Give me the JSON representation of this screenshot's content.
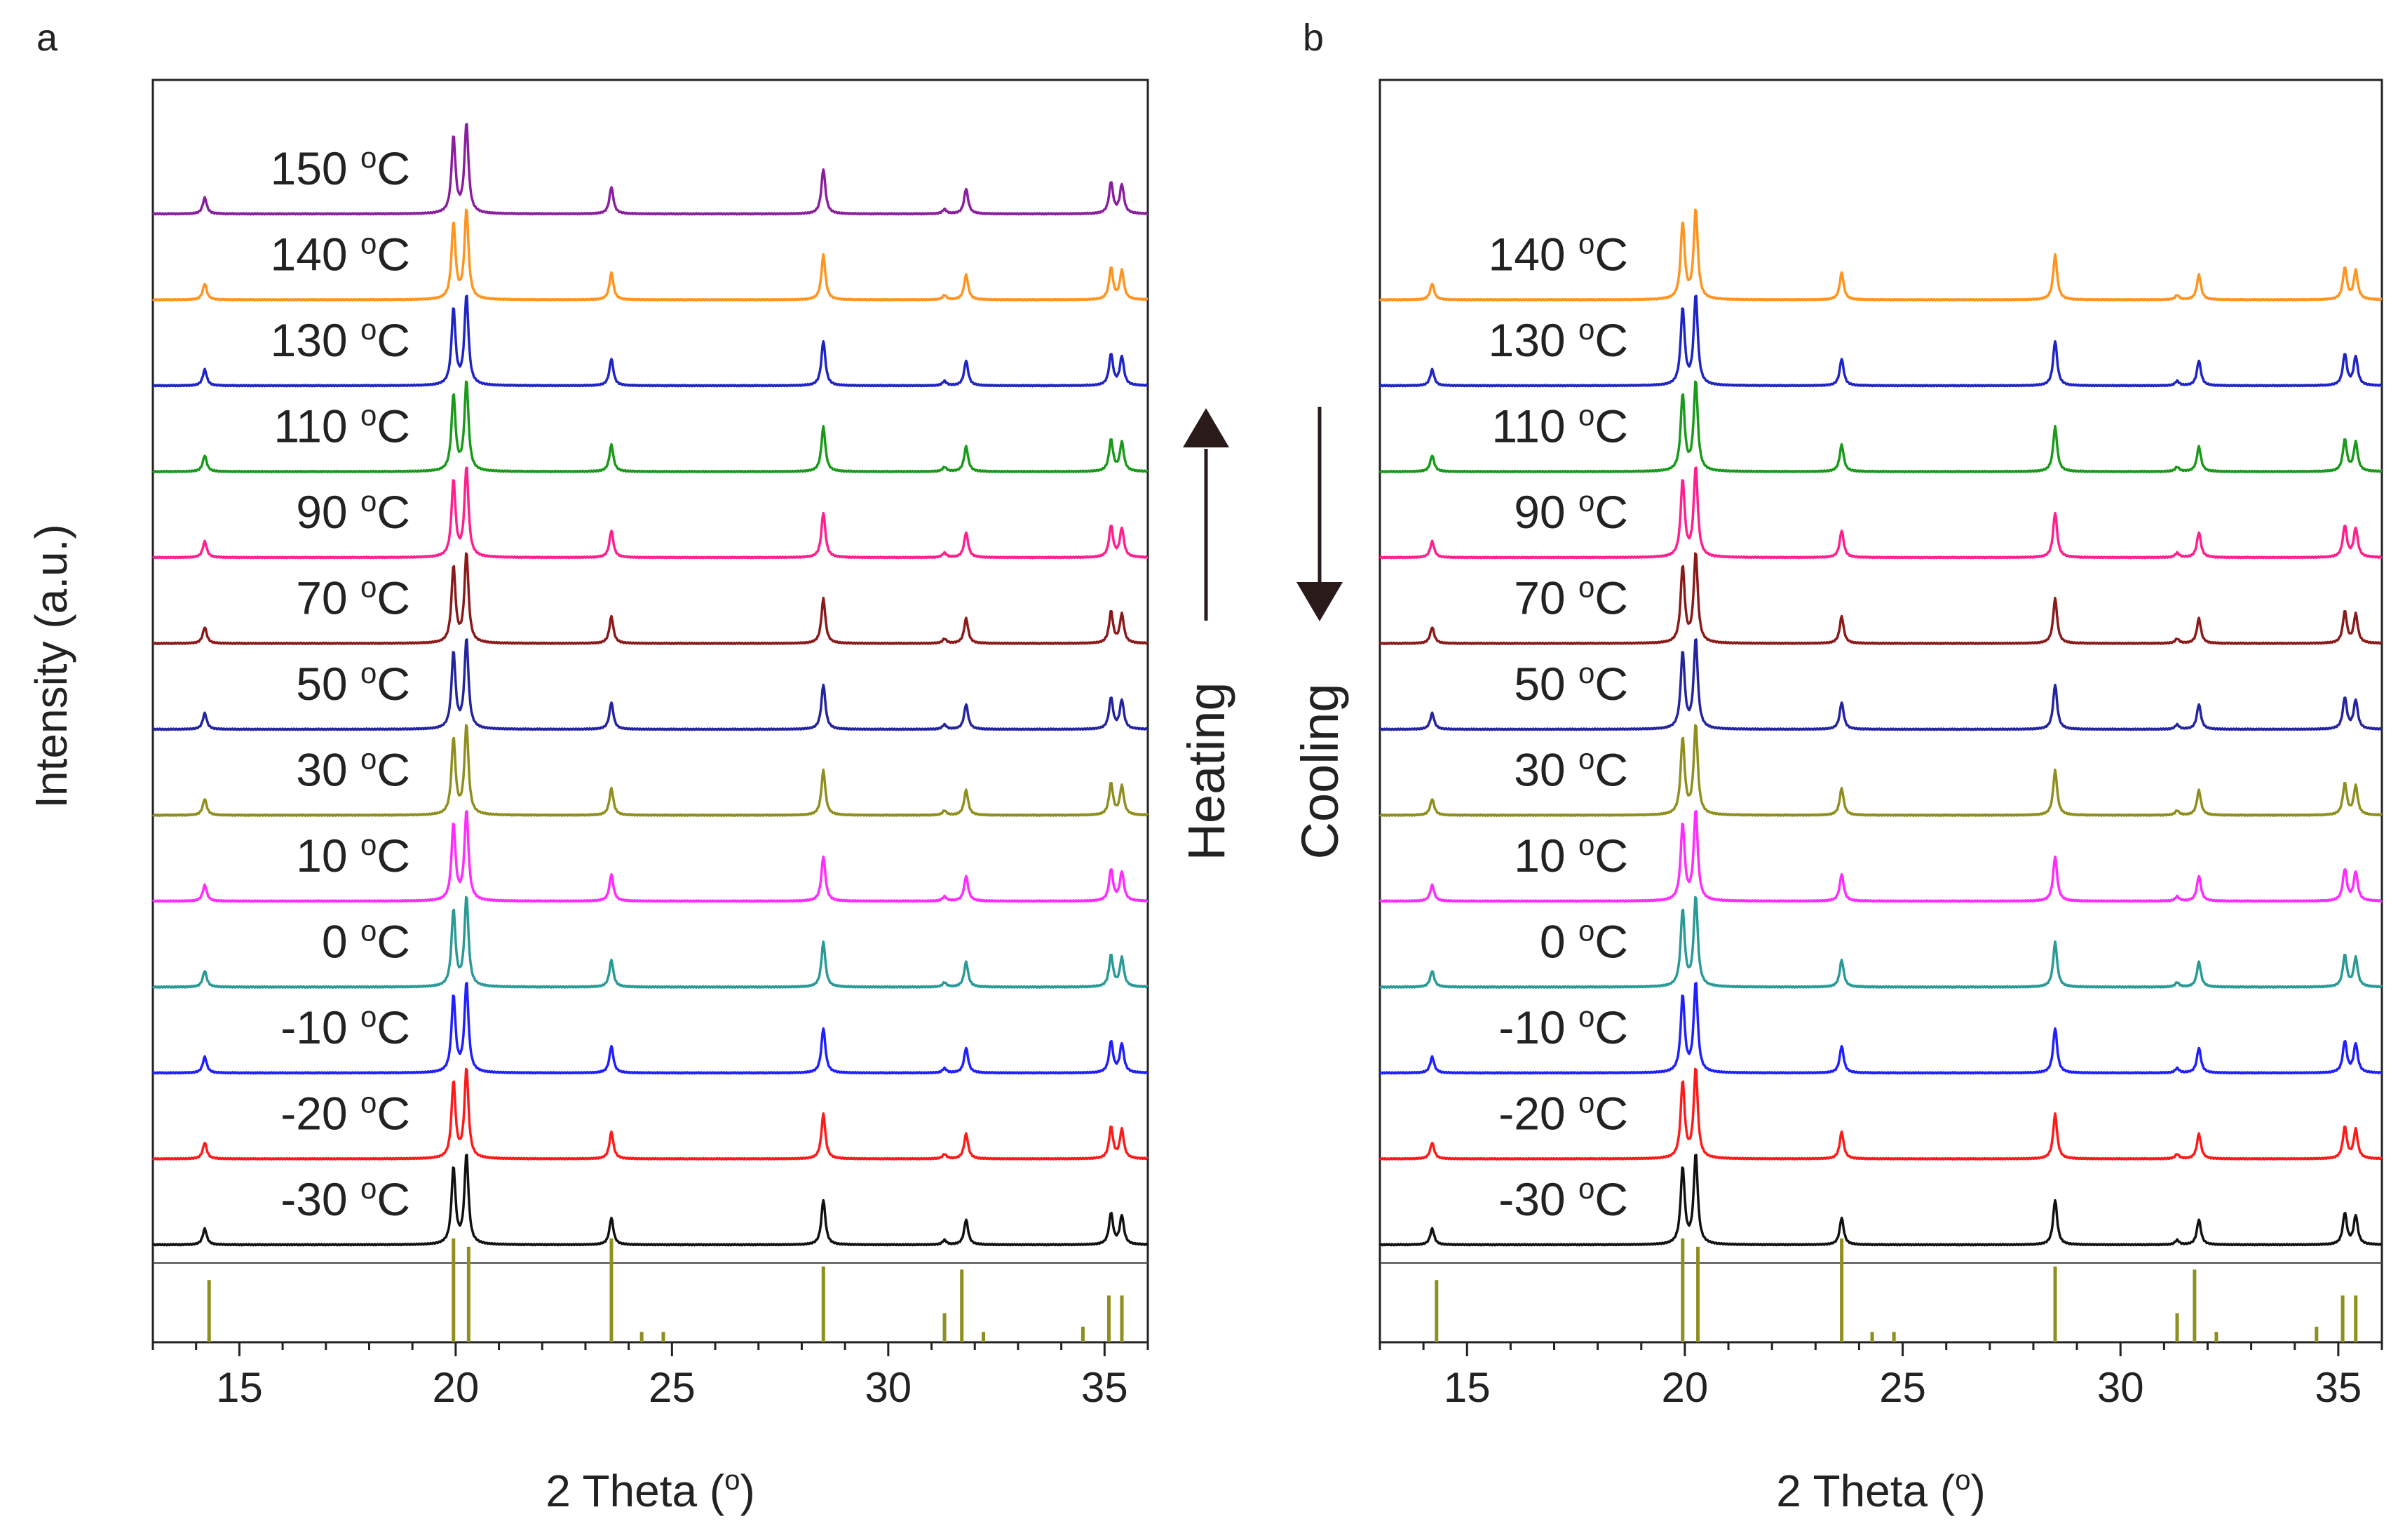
{
  "figure": {
    "panel_letters": [
      "a",
      "b"
    ],
    "y_axis_title": "Intensity (a.u.)",
    "heating_label": "Heating",
    "cooling_label": "Cooling",
    "degree_symbol": "o"
  },
  "chart_data": [
    {
      "panel": "a",
      "type": "line",
      "subtype": "stacked XRD patterns",
      "xlabel": "2 Theta (°)",
      "xlabel_prefix": "2 Theta (",
      "xlabel_suffix": ")",
      "ylabel": "Intensity (a.u.)",
      "xlim": [
        13,
        36
      ],
      "xticks": [
        15,
        20,
        25,
        30,
        35
      ],
      "y_ticks_shown": false,
      "direction": "Heating",
      "peak_positions": [
        14.2,
        19.95,
        20.25,
        23.6,
        28.5,
        31.3,
        31.8,
        35.15,
        35.4
      ],
      "peak_relative_heights": [
        0.18,
        0.85,
        1.0,
        0.3,
        0.5,
        0.05,
        0.28,
        0.35,
        0.32
      ],
      "series": [
        {
          "name": "-30 °C",
          "label": "-30",
          "color": "#111111"
        },
        {
          "name": "-20 °C",
          "label": "-20",
          "color": "#ff1a1a"
        },
        {
          "name": "-10 °C",
          "label": "-10",
          "color": "#1f1fff"
        },
        {
          "name": "0 °C",
          "label": "0",
          "color": "#2a9a96"
        },
        {
          "name": "10 °C",
          "label": "10",
          "color": "#ff2bff"
        },
        {
          "name": "30 °C",
          "label": "30",
          "color": "#8f8f1f"
        },
        {
          "name": "50 °C",
          "label": "50",
          "color": "#24249e"
        },
        {
          "name": "70 °C",
          "label": "70",
          "color": "#8a1a1a"
        },
        {
          "name": "90 °C",
          "label": "90",
          "color": "#ff1f8e"
        },
        {
          "name": "110 °C",
          "label": "110",
          "color": "#1a9a1a"
        },
        {
          "name": "130 °C",
          "label": "130",
          "color": "#1f24c4"
        },
        {
          "name": "140 °C",
          "label": "140",
          "color": "#ff941f"
        },
        {
          "name": "150 °C",
          "label": "150",
          "color": "#8a1f9e"
        }
      ],
      "reference_pattern": {
        "color": "#8f8f1f",
        "positions": [
          14.3,
          19.95,
          20.3,
          23.6,
          24.3,
          24.8,
          28.5,
          31.3,
          31.7,
          32.2,
          34.5,
          35.1,
          35.4
        ],
        "relative_intensities": [
          0.6,
          1.0,
          0.92,
          1.0,
          0.1,
          0.1,
          0.73,
          0.28,
          0.7,
          0.1,
          0.15,
          0.45,
          0.45
        ]
      }
    },
    {
      "panel": "b",
      "type": "line",
      "subtype": "stacked XRD patterns",
      "xlabel": "2 Theta (°)",
      "xlabel_prefix": "2 Theta (",
      "xlabel_suffix": ")",
      "ylabel": "",
      "xlim": [
        13,
        36
      ],
      "xticks": [
        15,
        20,
        25,
        30,
        35
      ],
      "y_ticks_shown": false,
      "direction": "Cooling",
      "peak_positions": [
        14.2,
        19.95,
        20.25,
        23.6,
        28.5,
        31.3,
        31.8,
        35.15,
        35.4
      ],
      "peak_relative_heights": [
        0.18,
        0.85,
        1.0,
        0.3,
        0.5,
        0.05,
        0.28,
        0.35,
        0.32
      ],
      "series": [
        {
          "name": "-30 °C",
          "label": "-30",
          "color": "#111111"
        },
        {
          "name": "-20 °C",
          "label": "-20",
          "color": "#ff1a1a"
        },
        {
          "name": "-10 °C",
          "label": "-10",
          "color": "#1f1fff"
        },
        {
          "name": "0 °C",
          "label": "0",
          "color": "#2a9a96"
        },
        {
          "name": "10 °C",
          "label": "10",
          "color": "#ff2bff"
        },
        {
          "name": "30 °C",
          "label": "30",
          "color": "#8f8f1f"
        },
        {
          "name": "50 °C",
          "label": "50",
          "color": "#24249e"
        },
        {
          "name": "70 °C",
          "label": "70",
          "color": "#8a1a1a"
        },
        {
          "name": "90 °C",
          "label": "90",
          "color": "#ff1f8e"
        },
        {
          "name": "110 °C",
          "label": "110",
          "color": "#1a9a1a"
        },
        {
          "name": "130 °C",
          "label": "130",
          "color": "#1f24c4"
        },
        {
          "name": "140 °C",
          "label": "140",
          "color": "#ff941f"
        }
      ],
      "reference_pattern": {
        "color": "#8f8f1f",
        "positions": [
          14.3,
          19.95,
          20.3,
          23.6,
          24.3,
          24.8,
          28.5,
          31.3,
          31.7,
          32.2,
          34.5,
          35.1,
          35.4
        ],
        "relative_intensities": [
          0.6,
          1.0,
          0.92,
          1.0,
          0.1,
          0.1,
          0.73,
          0.28,
          0.7,
          0.1,
          0.15,
          0.45,
          0.45
        ]
      }
    }
  ]
}
